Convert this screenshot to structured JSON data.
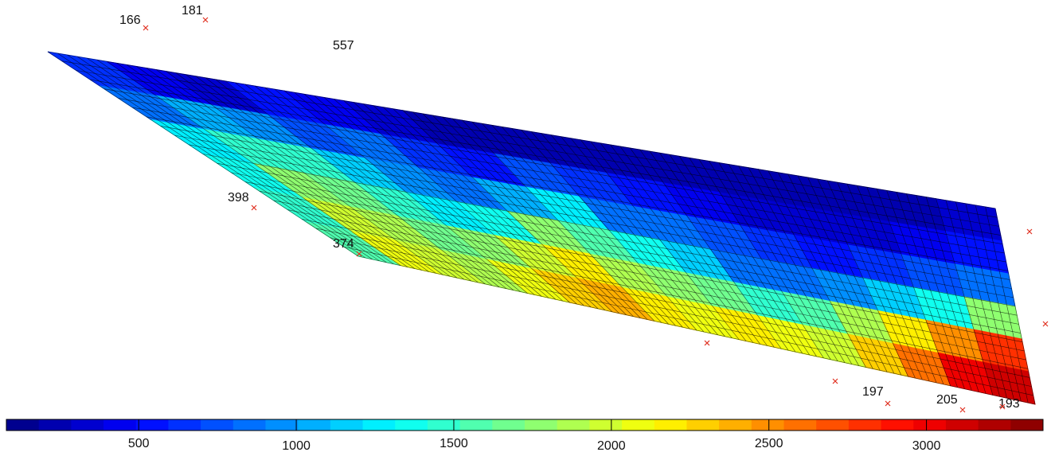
{
  "chart_data": {
    "type": "surface",
    "colormap": "jet",
    "clim": [
      80,
      3370
    ],
    "colorbar_ticks": [
      500,
      1000,
      1500,
      2000,
      2500,
      3000
    ],
    "z": [
      [
        600,
        400,
        300,
        500,
        400,
        300,
        250,
        200,
        200,
        250,
        200,
        200,
        200,
        200,
        200,
        300
      ],
      [
        900,
        1100,
        1000,
        700,
        800,
        600,
        500,
        700,
        600,
        500,
        400,
        300,
        300,
        300,
        400,
        500
      ],
      [
        1300,
        1500,
        1500,
        1200,
        1000,
        900,
        1100,
        1300,
        900,
        800,
        700,
        600,
        500,
        600,
        700,
        900
      ],
      [
        1400,
        1800,
        1700,
        1500,
        1300,
        1400,
        1800,
        1600,
        1400,
        1200,
        900,
        800,
        1000,
        1200,
        1400,
        1800
      ],
      [
        1500,
        2000,
        1900,
        1700,
        1800,
        2000,
        2200,
        1900,
        1800,
        1700,
        1500,
        1600,
        1900,
        2200,
        2500,
        2800
      ],
      [
        1600,
        2100,
        2000,
        1900,
        2100,
        2300,
        2400,
        2200,
        2100,
        2200,
        2100,
        2000,
        2300,
        2600,
        3000,
        3100
      ]
    ],
    "point_labels": [
      166,
      181,
      557,
      398,
      374,
      197,
      205,
      193
    ]
  }
}
